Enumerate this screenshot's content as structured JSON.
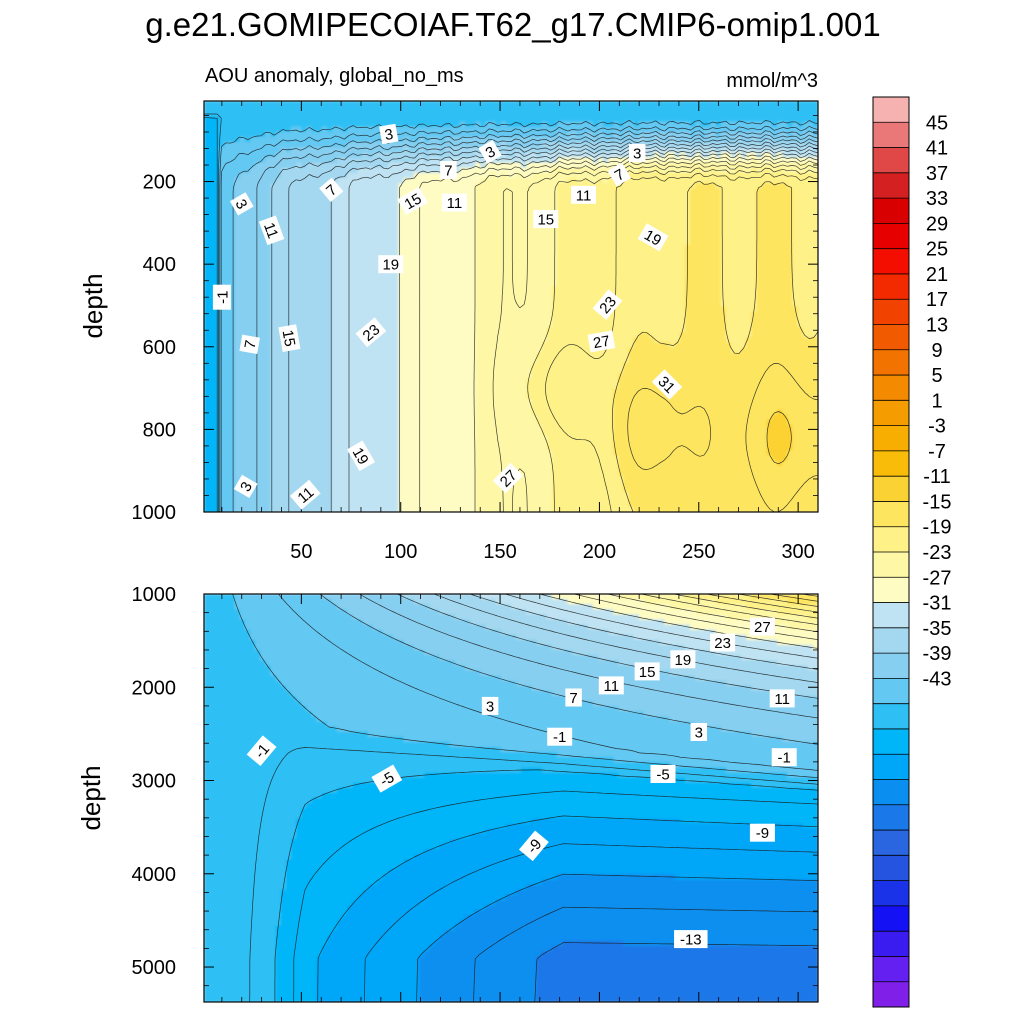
{
  "chart_data": {
    "type": "contour",
    "title": "g.e21.GOMIPECOIAF.T62_g17.CMIP6-omip1.001",
    "variable": "AOU anomaly, global_no_ms",
    "units": "mmol/m^3",
    "colorbar": {
      "labels": [
        "45",
        "41",
        "37",
        "33",
        "29",
        "25",
        "21",
        "17",
        "13",
        "9",
        "5",
        "1",
        "-3",
        "-7",
        "-11",
        "-15",
        "-19",
        "-23",
        "-27",
        "-31",
        "-35",
        "-39",
        "-43"
      ],
      "colors": [
        "#7f1fe8",
        "#6420f0",
        "#3a1cf0",
        "#1412f5",
        "#1a33e8",
        "#2555e0",
        "#2a66e0",
        "#1a78e8",
        "#0a8ff0",
        "#00a6f8",
        "#00b6f8",
        "#2ec0f4",
        "#63c8f2",
        "#86cff0",
        "#a3d8f0",
        "#bfe3f3",
        "#fefcc3",
        "#fef8a6",
        "#fef187",
        "#fde55f",
        "#fbd233",
        "#f9bd09",
        "#f7ae00",
        "#f59c00",
        "#f38a00",
        "#f37300",
        "#f25a00",
        "#f24200",
        "#f32900",
        "#f40e00",
        "#e60000",
        "#d80000",
        "#d42020",
        "#e04848",
        "#ea7878",
        "#f6b1b1"
      ]
    },
    "panels": [
      {
        "name": "upper",
        "xlabel": "",
        "ylabel": "depth",
        "xlim": [
          1,
          310
        ],
        "ylim": [
          1000,
          5
        ],
        "xticks": [
          50,
          100,
          150,
          200,
          250,
          300
        ],
        "yticks": [
          200,
          400,
          600,
          800,
          1000
        ],
        "show_xtick_labels": true,
        "contour_labels": [
          {
            "text": "3",
            "x": 94,
            "y": 85,
            "angle": -10
          },
          {
            "text": "3",
            "x": 145,
            "y": 128,
            "angle": -30
          },
          {
            "text": "3",
            "x": 219,
            "y": 131,
            "angle": 0
          },
          {
            "text": "3",
            "x": 20,
            "y": 254,
            "angle": 60
          },
          {
            "text": "7",
            "x": 65,
            "y": 220,
            "angle": -40
          },
          {
            "text": "7",
            "x": 124,
            "y": 172,
            "angle": 0
          },
          {
            "text": "7",
            "x": 210,
            "y": 183,
            "angle": -30
          },
          {
            "text": "11",
            "x": 35,
            "y": 318,
            "angle": 70
          },
          {
            "text": "11",
            "x": 127,
            "y": 251,
            "angle": 0
          },
          {
            "text": "11",
            "x": 192,
            "y": 232,
            "angle": 0
          },
          {
            "text": "15",
            "x": 106,
            "y": 247,
            "angle": -30
          },
          {
            "text": "15",
            "x": 173,
            "y": 291,
            "angle": 0
          },
          {
            "text": "19",
            "x": 95,
            "y": 400,
            "angle": 0
          },
          {
            "text": "19",
            "x": 227,
            "y": 335,
            "angle": 30
          },
          {
            "text": "23",
            "x": 85,
            "y": 565,
            "angle": -40
          },
          {
            "text": "23",
            "x": 204,
            "y": 498,
            "angle": -50
          },
          {
            "text": "27",
            "x": 201,
            "y": 587,
            "angle": -10
          },
          {
            "text": "31",
            "x": 234,
            "y": 691,
            "angle": 45
          },
          {
            "text": "-1",
            "x": 10,
            "y": 480,
            "angle": -90
          },
          {
            "text": "7",
            "x": 24,
            "y": 594,
            "angle": -80
          },
          {
            "text": "15",
            "x": 44,
            "y": 579,
            "angle": 80
          },
          {
            "text": "19",
            "x": 80,
            "y": 864,
            "angle": 60
          },
          {
            "text": "27",
            "x": 154,
            "y": 918,
            "angle": -45
          },
          {
            "text": "3",
            "x": 22,
            "y": 938,
            "angle": -60
          },
          {
            "text": "11",
            "x": 52,
            "y": 958,
            "angle": -40
          }
        ]
      },
      {
        "name": "lower",
        "xlabel": "",
        "ylabel": "depth",
        "xlim": [
          1,
          310
        ],
        "ylim": [
          5375,
          1000
        ],
        "xticks": [
          50,
          100,
          150,
          200,
          250,
          300
        ],
        "yticks": [
          1000,
          2000,
          3000,
          4000,
          5000
        ],
        "show_xtick_labels": false,
        "contour_labels": [
          {
            "text": "27",
            "x": 282,
            "y": 1350,
            "angle": 0
          },
          {
            "text": "23",
            "x": 262,
            "y": 1520,
            "angle": 0
          },
          {
            "text": "19",
            "x": 242,
            "y": 1700,
            "angle": 0
          },
          {
            "text": "15",
            "x": 224,
            "y": 1830,
            "angle": 0
          },
          {
            "text": "11",
            "x": 206,
            "y": 1980,
            "angle": 0
          },
          {
            "text": "11",
            "x": 292,
            "y": 2120,
            "angle": 0
          },
          {
            "text": "7",
            "x": 187,
            "y": 2110,
            "angle": 0
          },
          {
            "text": "3",
            "x": 145,
            "y": 2200,
            "angle": 0
          },
          {
            "text": "3",
            "x": 250,
            "y": 2480,
            "angle": 0
          },
          {
            "text": "-1",
            "x": 180,
            "y": 2530,
            "angle": 0
          },
          {
            "text": "-1",
            "x": 293,
            "y": 2750,
            "angle": 0
          },
          {
            "text": "-1",
            "x": 30,
            "y": 2680,
            "angle": -50
          },
          {
            "text": "-5",
            "x": 93,
            "y": 2980,
            "angle": -30
          },
          {
            "text": "-5",
            "x": 232,
            "y": 2930,
            "angle": 0
          },
          {
            "text": "-9",
            "x": 167,
            "y": 3700,
            "angle": -50
          },
          {
            "text": "-9",
            "x": 282,
            "y": 3560,
            "angle": 0
          },
          {
            "text": "-13",
            "x": 246,
            "y": 4700,
            "angle": 0
          }
        ]
      }
    ]
  }
}
